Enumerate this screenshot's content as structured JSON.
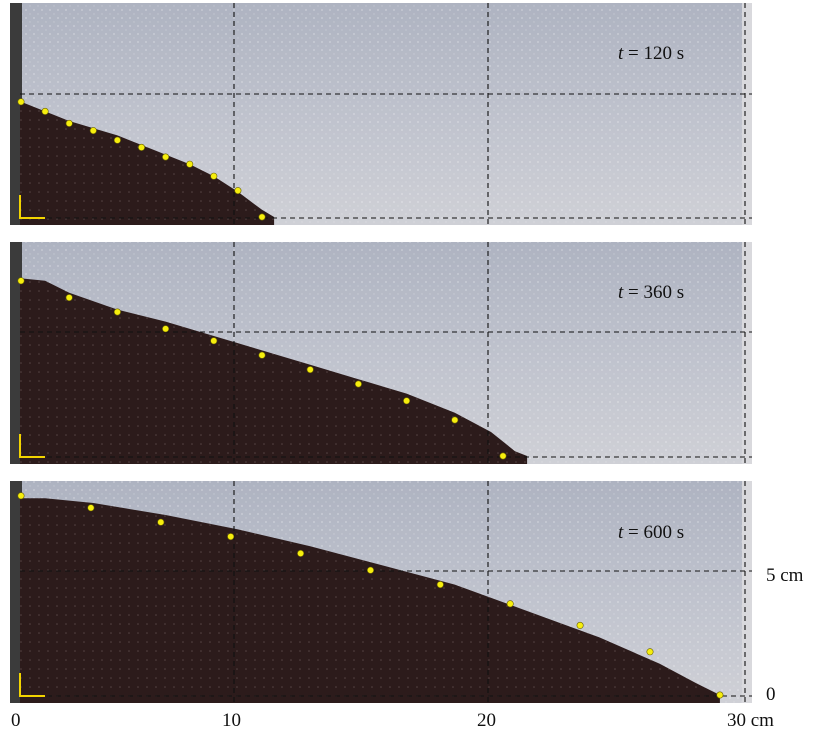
{
  "panels": [
    {
      "label_var": "t",
      "label_rest": " = 120 s",
      "profile": [
        [
          0.0,
          4.8
        ],
        [
          1.0,
          4.4
        ],
        [
          2.0,
          4.0
        ],
        [
          3.0,
          3.7
        ],
        [
          4.0,
          3.4
        ],
        [
          5.0,
          3.0
        ],
        [
          6.0,
          2.6
        ],
        [
          7.0,
          2.2
        ],
        [
          8.0,
          1.7
        ],
        [
          9.0,
          1.05
        ],
        [
          10.0,
          0.3
        ],
        [
          10.5,
          0.0
        ]
      ],
      "markers": [
        [
          0.0,
          4.8
        ],
        [
          1.0,
          4.4
        ],
        [
          2.0,
          3.9
        ],
        [
          3.0,
          3.6
        ],
        [
          4.0,
          3.2
        ],
        [
          5.0,
          2.9
        ],
        [
          6.0,
          2.5
        ],
        [
          7.0,
          2.2
        ],
        [
          8.0,
          1.7
        ],
        [
          9.0,
          1.1
        ],
        [
          10.0,
          0.0
        ]
      ]
    },
    {
      "label_var": "t",
      "label_rest": " = 360 s",
      "profile": [
        [
          0.0,
          7.4
        ],
        [
          1.0,
          7.3
        ],
        [
          2.0,
          6.8
        ],
        [
          4.0,
          6.1
        ],
        [
          6.0,
          5.6
        ],
        [
          8.0,
          5.0
        ],
        [
          10.0,
          4.4
        ],
        [
          12.0,
          3.8
        ],
        [
          14.0,
          3.2
        ],
        [
          16.0,
          2.6
        ],
        [
          18.0,
          1.8
        ],
        [
          19.5,
          1.0
        ],
        [
          20.5,
          0.2
        ],
        [
          21.0,
          0.0
        ]
      ],
      "markers": [
        [
          0.0,
          7.3
        ],
        [
          2.0,
          6.6
        ],
        [
          4.0,
          6.0
        ],
        [
          6.0,
          5.3
        ],
        [
          8.0,
          4.8
        ],
        [
          10.0,
          4.2
        ],
        [
          12.0,
          3.6
        ],
        [
          14.0,
          3.0
        ],
        [
          16.0,
          2.3
        ],
        [
          18.0,
          1.5
        ],
        [
          20.0,
          0.0
        ]
      ]
    },
    {
      "label_var": "t",
      "label_rest": " = 600 s",
      "profile": [
        [
          0.0,
          8.2
        ],
        [
          1.0,
          8.2
        ],
        [
          3.0,
          8.0
        ],
        [
          6.0,
          7.5
        ],
        [
          9.0,
          6.9
        ],
        [
          12.0,
          6.2
        ],
        [
          15.0,
          5.4
        ],
        [
          18.0,
          4.6
        ],
        [
          21.0,
          3.5
        ],
        [
          24.0,
          2.4
        ],
        [
          26.5,
          1.3
        ],
        [
          28.0,
          0.5
        ],
        [
          29.0,
          0.0
        ]
      ],
      "markers": [
        [
          0.0,
          8.3
        ],
        [
          2.9,
          7.8
        ],
        [
          5.8,
          7.2
        ],
        [
          8.7,
          6.6
        ],
        [
          11.6,
          5.9
        ],
        [
          14.5,
          5.2
        ],
        [
          17.4,
          4.6
        ],
        [
          20.3,
          3.8
        ],
        [
          23.2,
          2.9
        ],
        [
          26.1,
          1.8
        ],
        [
          29.0,
          0.0
        ]
      ]
    }
  ],
  "side_labels": {
    "top": "5 cm",
    "bottom": "0"
  },
  "bottom_ticks": [
    "0",
    "10",
    "20",
    "30 cm"
  ],
  "colors": {
    "background": "#b9bdc9",
    "sediment": "#2c1b1b",
    "dashed": "#111111",
    "marker": "#f6ee0e",
    "corner": "#f2d400",
    "wall": "#3b3b3b"
  }
}
